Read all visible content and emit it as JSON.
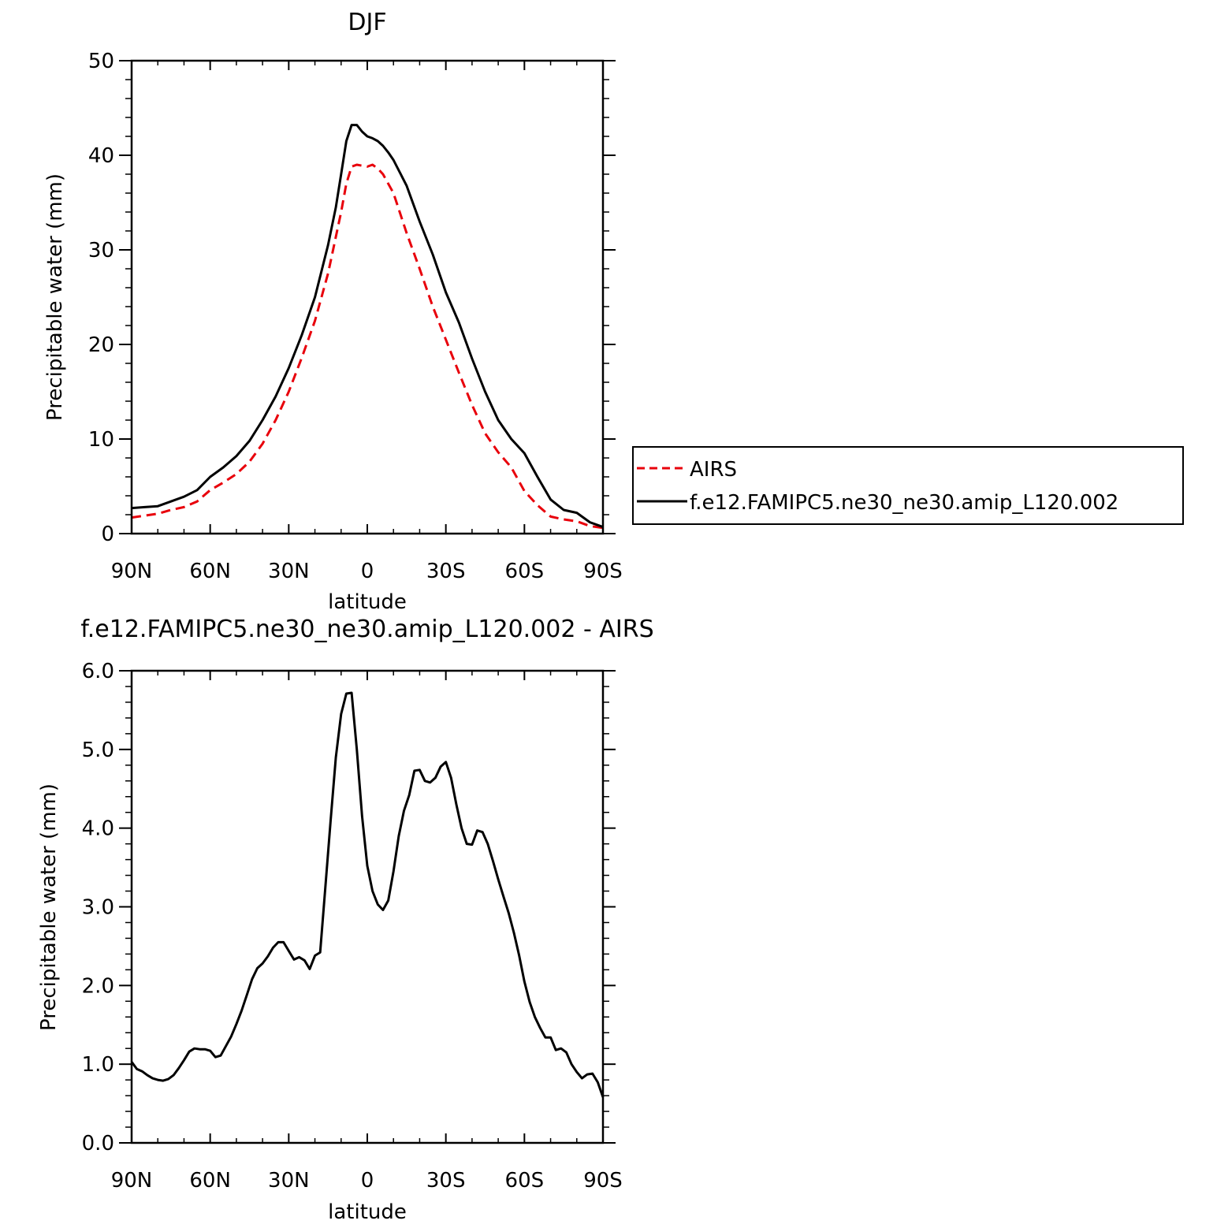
{
  "chart_data": [
    {
      "type": "line",
      "title": "DJF",
      "xlabel": "latitude",
      "ylabel": "Precipitable water (mm)",
      "xlim": [
        90,
        -90
      ],
      "ylim": [
        0,
        50
      ],
      "x_ticks": [
        90,
        60,
        30,
        0,
        -30,
        -60,
        -90
      ],
      "x_tick_labels": [
        "90N",
        "60N",
        "30N",
        "0",
        "30S",
        "60S",
        "90S"
      ],
      "y_ticks": [
        0,
        10,
        20,
        30,
        40,
        50
      ],
      "y_tick_labels": [
        "0",
        "10",
        "20",
        "30",
        "40",
        "50"
      ],
      "grid": false,
      "legend_position": "right",
      "series": [
        {
          "name": "AIRS",
          "color": "#e8000b",
          "dash": "dashed",
          "x": [
            90,
            85,
            80,
            75,
            70,
            65,
            60,
            55,
            50,
            45,
            40,
            35,
            30,
            25,
            20,
            15,
            10,
            8,
            6,
            4,
            2,
            0,
            -2,
            -4,
            -6,
            -10,
            -15,
            -20,
            -25,
            -30,
            -35,
            -40,
            -45,
            -50,
            -55,
            -60,
            -65,
            -70,
            -75,
            -80,
            -85,
            -90
          ],
          "y": [
            1.7,
            1.9,
            2.1,
            2.5,
            2.8,
            3.4,
            4.6,
            5.4,
            6.3,
            7.6,
            9.5,
            12.0,
            15.0,
            18.6,
            22.5,
            27.5,
            34.0,
            37.0,
            38.8,
            39.0,
            38.9,
            38.8,
            39.0,
            38.6,
            38.0,
            36.0,
            31.8,
            28.0,
            24.0,
            20.5,
            17.0,
            13.6,
            10.6,
            8.6,
            7.0,
            4.5,
            3.0,
            1.8,
            1.5,
            1.3,
            0.8,
            0.6
          ]
        },
        {
          "name": "f.e12.FAMIPC5.ne30_ne30.amip_L120.002",
          "color": "#000000",
          "dash": "solid",
          "x": [
            90,
            85,
            80,
            75,
            70,
            65,
            60,
            55,
            50,
            45,
            40,
            35,
            30,
            25,
            20,
            15,
            12,
            10,
            8,
            6,
            4,
            2,
            0,
            -2,
            -4,
            -6,
            -8,
            -10,
            -15,
            -20,
            -25,
            -30,
            -35,
            -40,
            -45,
            -50,
            -55,
            -60,
            -65,
            -70,
            -75,
            -80,
            -85,
            -90
          ],
          "y": [
            2.7,
            2.8,
            2.9,
            3.4,
            3.9,
            4.6,
            6.0,
            7.0,
            8.2,
            9.8,
            12.0,
            14.5,
            17.5,
            21.0,
            25.0,
            30.5,
            34.5,
            38.0,
            41.5,
            43.2,
            43.2,
            42.5,
            42.0,
            41.8,
            41.5,
            41.0,
            40.3,
            39.5,
            36.8,
            33.0,
            29.5,
            25.5,
            22.3,
            18.5,
            15.0,
            12.0,
            10.0,
            8.5,
            6.0,
            3.6,
            2.5,
            2.2,
            1.2,
            0.7
          ]
        }
      ]
    },
    {
      "type": "line",
      "title": "f.e12.FAMIPC5.ne30_ne30.amip_L120.002 - AIRS",
      "xlabel": "latitude",
      "ylabel": "Precipitable water (mm)",
      "xlim": [
        90,
        -90
      ],
      "ylim": [
        0,
        6
      ],
      "x_ticks": [
        90,
        60,
        30,
        0,
        -30,
        -60,
        -90
      ],
      "x_tick_labels": [
        "90N",
        "60N",
        "30N",
        "0",
        "30S",
        "60S",
        "90S"
      ],
      "y_ticks": [
        0,
        1,
        2,
        3,
        4,
        5,
        6
      ],
      "y_tick_labels": [
        "0.0",
        "1.0",
        "2.0",
        "3.0",
        "4.0",
        "5.0",
        "6.0"
      ],
      "grid": false,
      "series": [
        {
          "color": "#000000",
          "dash": "solid",
          "x": [
            90,
            88,
            86,
            84,
            82,
            80,
            78,
            76,
            74,
            72,
            70,
            68,
            66,
            64,
            62,
            60,
            58,
            56,
            54,
            52,
            50,
            48,
            46,
            44,
            42,
            40,
            38,
            36,
            34,
            32,
            30,
            28,
            26,
            24,
            22,
            20,
            18,
            16,
            14,
            12,
            10,
            8,
            6,
            4,
            2,
            0,
            -2,
            -4,
            -6,
            -8,
            -10,
            -12,
            -14,
            -16,
            -18,
            -20,
            -22,
            -24,
            -26,
            -28,
            -30,
            -32,
            -34,
            -36,
            -38,
            -40,
            -42,
            -44,
            -46,
            -48,
            -50,
            -52,
            -54,
            -56,
            -58,
            -60,
            -62,
            -64,
            -66,
            -68,
            -70,
            -72,
            -74,
            -76,
            -78,
            -80,
            -82,
            -84,
            -86,
            -88,
            -90
          ],
          "y": [
            1.03,
            0.94,
            0.91,
            0.86,
            0.82,
            0.8,
            0.79,
            0.81,
            0.86,
            0.95,
            1.05,
            1.16,
            1.2,
            1.19,
            1.19,
            1.17,
            1.09,
            1.11,
            1.23,
            1.35,
            1.51,
            1.68,
            1.88,
            2.08,
            2.22,
            2.28,
            2.37,
            2.48,
            2.55,
            2.55,
            2.44,
            2.33,
            2.36,
            2.32,
            2.21,
            2.38,
            2.42,
            3.25,
            4.1,
            4.9,
            5.45,
            5.71,
            5.72,
            5.0,
            4.15,
            3.52,
            3.2,
            3.03,
            2.96,
            3.08,
            3.45,
            3.9,
            4.22,
            4.42,
            4.73,
            4.74,
            4.6,
            4.58,
            4.64,
            4.78,
            4.84,
            4.64,
            4.3,
            4.0,
            3.8,
            3.79,
            3.97,
            3.95,
            3.8,
            3.58,
            3.35,
            3.13,
            2.92,
            2.67,
            2.38,
            2.05,
            1.79,
            1.6,
            1.46,
            1.34,
            1.34,
            1.18,
            1.2,
            1.15,
            1.0,
            0.9,
            0.82,
            0.87,
            0.88,
            0.77,
            0.58
          ],
          "y_extra_note": ""
        }
      ]
    }
  ]
}
